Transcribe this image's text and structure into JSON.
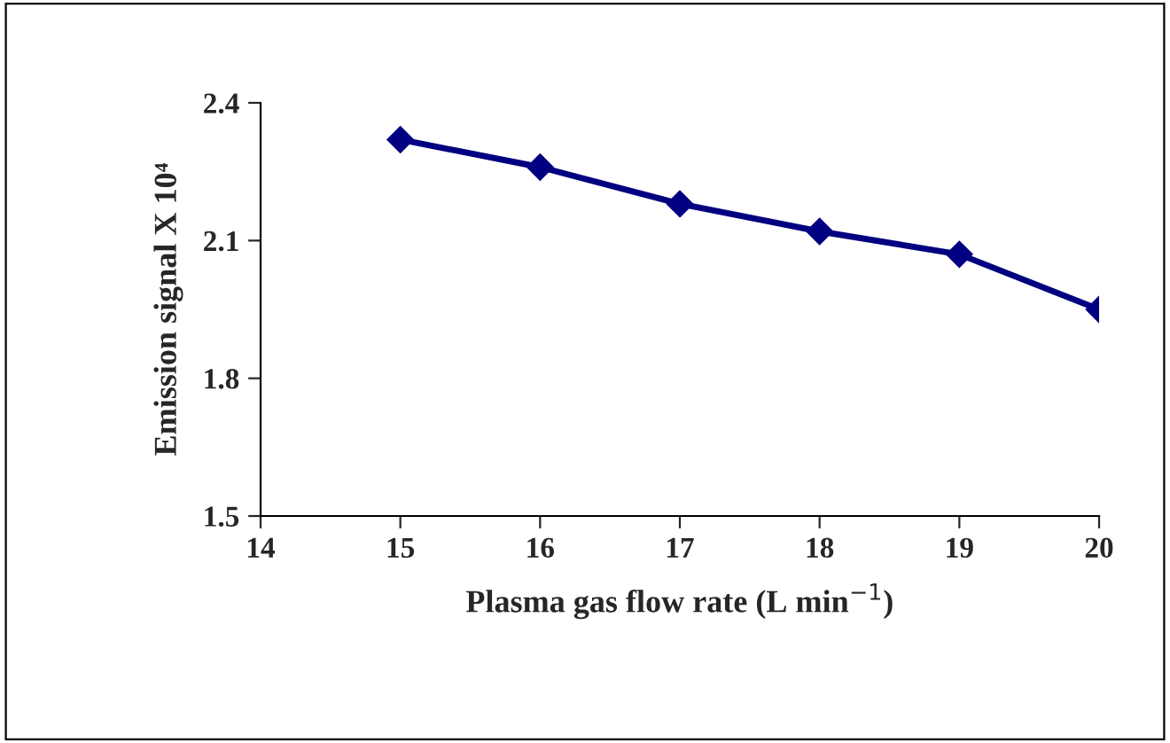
{
  "chart_data": {
    "type": "line",
    "xlabel": "Plasma gas flow rate (L min$^{−1}$)",
    "ylabel": "Emission signal X 10⁴",
    "x": [
      15,
      16,
      17,
      18,
      19,
      20
    ],
    "series": [
      {
        "color": "#000080",
        "values": [
          2.32,
          2.26,
          2.18,
          2.12,
          2.07,
          1.95
        ]
      }
    ],
    "xlim": [
      14,
      20
    ],
    "xticks": [
      14,
      15,
      16,
      17,
      18,
      19,
      20
    ],
    "ylim": [
      1.5,
      2.4
    ],
    "yticks": [
      {
        "value": 1.5,
        "label": "1.5"
      },
      {
        "value": 1.8,
        "label": "1.8"
      },
      {
        "value": 2.1,
        "label": "2.1"
      },
      {
        "value": 2.4,
        "label": "2.4"
      }
    ],
    "marker": "diamond",
    "line_style": "solid",
    "grid": false,
    "legend": false
  }
}
